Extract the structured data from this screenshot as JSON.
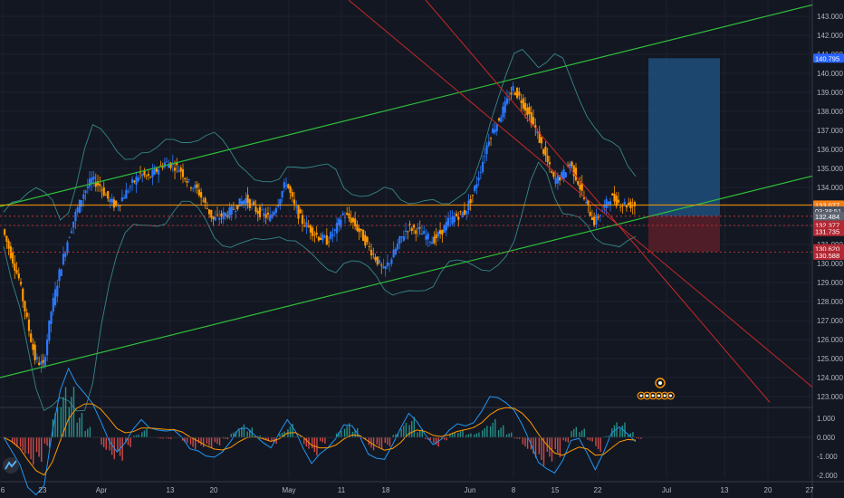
{
  "chart_data": {
    "type": "candlestick",
    "y_axis": {
      "min": 122.6,
      "max": 143.6,
      "ticks": [
        "143.000",
        "142.000",
        "141.000",
        "140.000",
        "139.000",
        "138.000",
        "137.000",
        "136.000",
        "135.000",
        "134.000",
        "133.000",
        "132.000",
        "131.000",
        "130.000",
        "129.000",
        "128.000",
        "127.000",
        "126.000",
        "125.000",
        "124.000",
        "123.000"
      ]
    },
    "x_axis": {
      "ticks": [
        "6",
        "23",
        "Apr",
        "13",
        "20",
        "May",
        "11",
        "18",
        "Jun",
        "8",
        "15",
        "22",
        "Jul",
        "13",
        "20",
        "27"
      ]
    },
    "price_tags": [
      {
        "label": "140.795",
        "value": 140.795,
        "color": "#2962ff"
      },
      {
        "label": "133.077",
        "value": 133.077,
        "color": "#f57f17"
      },
      {
        "label": "03:38:51",
        "value": 132.77,
        "color": "#4a4f5c"
      },
      {
        "label": "132.484",
        "value": 132.484,
        "color": "#5d6370"
      },
      {
        "label": "132.377",
        "value": 132.02,
        "color": "#b22833"
      },
      {
        "label": "131.735",
        "value": 131.68,
        "color": "#b22833"
      },
      {
        "label": "130.620",
        "value": 130.78,
        "color": "#b22833"
      },
      {
        "label": "130.588",
        "value": 130.43,
        "color": "#b22833"
      }
    ],
    "macd_axis": {
      "ticks": [
        "1.000",
        "0.000",
        "-1.000",
        "-2.000"
      ]
    },
    "position_box": {
      "entry": 132.5,
      "target": 140.795,
      "stop": 130.62
    },
    "close_series": [
      131.8,
      130.5,
      129.2,
      127.0,
      125.0,
      124.6,
      127.5,
      129.5,
      131.2,
      132.6,
      133.7,
      134.4,
      134.1,
      133.4,
      133.0,
      133.6,
      134.2,
      134.7,
      134.5,
      134.9,
      135.3,
      135.2,
      134.9,
      134.2,
      133.9,
      133.1,
      132.3,
      132.5,
      132.7,
      133.1,
      133.4,
      132.9,
      132.6,
      132.4,
      133.3,
      134.3,
      133.0,
      132.2,
      131.8,
      131.4,
      131.2,
      131.7,
      132.6,
      132.3,
      131.7,
      131.0,
      130.3,
      129.6,
      130.3,
      131.2,
      131.9,
      131.8,
      131.5,
      131.2,
      131.6,
      132.2,
      132.5,
      132.7,
      133.6,
      135.0,
      136.6,
      137.4,
      138.3,
      139.2,
      138.6,
      137.8,
      136.8,
      135.6,
      134.4,
      134.6,
      135.3,
      134.3,
      133.1,
      132.2,
      132.8,
      133.5,
      133.2,
      133.1,
      133.077
    ],
    "colors": {
      "background": "#131722",
      "grid": "#1e2230",
      "up": "#2979ff",
      "down": "#ff9800",
      "channel": "#2fbe3a",
      "downtrend": "#c62828",
      "bollinger": "#3fa3a3",
      "ma": "#ff7043",
      "macd": "#2196f3",
      "signal": "#ff9800",
      "profit": "#1f4f7a",
      "loss": "#5a1f28"
    }
  },
  "ui": {
    "logo_icon": "tradingview-logo-icon",
    "event_markers": [
      "earnings-marker-icon",
      "dividend-marker-icon"
    ]
  }
}
